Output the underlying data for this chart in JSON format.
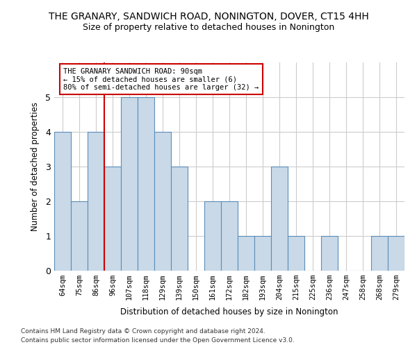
{
  "title": "THE GRANARY, SANDWICH ROAD, NONINGTON, DOVER, CT15 4HH",
  "subtitle": "Size of property relative to detached houses in Nonington",
  "xlabel": "Distribution of detached houses by size in Nonington",
  "ylabel": "Number of detached properties",
  "categories": [
    "64sqm",
    "75sqm",
    "86sqm",
    "96sqm",
    "107sqm",
    "118sqm",
    "129sqm",
    "139sqm",
    "150sqm",
    "161sqm",
    "172sqm",
    "182sqm",
    "193sqm",
    "204sqm",
    "215sqm",
    "225sqm",
    "236sqm",
    "247sqm",
    "258sqm",
    "268sqm",
    "279sqm"
  ],
  "values": [
    4,
    2,
    4,
    3,
    5,
    5,
    4,
    3,
    0,
    2,
    2,
    1,
    1,
    3,
    1,
    0,
    1,
    0,
    0,
    1,
    1
  ],
  "bar_color": "#c9d9e8",
  "bar_edge_color": "#5b8db8",
  "highlight_line_color": "#cc0000",
  "annotation_title": "THE GRANARY SANDWICH ROAD: 90sqm",
  "annotation_line1": "← 15% of detached houses are smaller (6)",
  "annotation_line2": "80% of semi-detached houses are larger (32) →",
  "annotation_box_color": "#ffffff",
  "annotation_box_edge": "#cc0000",
  "ylim": [
    0,
    6
  ],
  "yticks": [
    0,
    1,
    2,
    3,
    4,
    5,
    6
  ],
  "grid_color": "#cccccc",
  "bg_color": "#ffffff",
  "footer1": "Contains HM Land Registry data © Crown copyright and database right 2024.",
  "footer2": "Contains public sector information licensed under the Open Government Licence v3.0."
}
